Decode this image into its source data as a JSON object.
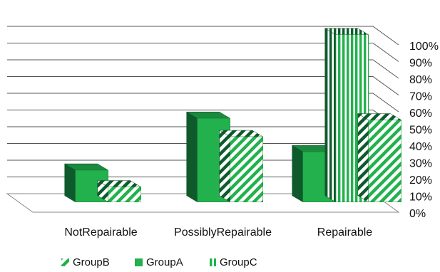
{
  "colors": {
    "green": "#22b14c",
    "green_dark": "#0e5a2c",
    "green_top": "#1b8a3e",
    "grid": "#555555"
  },
  "chart_data": {
    "type": "bar",
    "title": "",
    "xlabel": "",
    "ylabel": "",
    "ylim": [
      0,
      100
    ],
    "y_tick_format": "percent",
    "y_ticks": [
      "0%",
      "10%",
      "20%",
      "30%",
      "40%",
      "50%",
      "60%",
      "70%",
      "80%",
      "90%",
      "100%"
    ],
    "categories": [
      "NotRepairable",
      "PossiblyRepairable",
      "Repairable"
    ],
    "series": [
      {
        "name": "GroupA",
        "fill": "solid",
        "values": [
          19,
          50,
          30
        ]
      },
      {
        "name": "GroupB",
        "fill": "diagonal-stripes",
        "values": [
          9,
          39,
          49
        ]
      },
      {
        "name": "GroupC",
        "fill": "vertical-stripes",
        "values": [
          null,
          null,
          100
        ]
      }
    ],
    "legend_position": "bottom-left",
    "legend_order": [
      "GroupB",
      "GroupA",
      "GroupC"
    ],
    "grid": true,
    "three_d": true
  }
}
